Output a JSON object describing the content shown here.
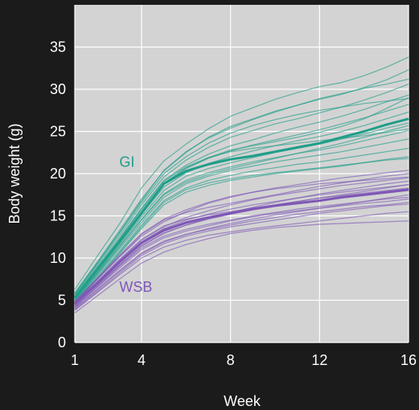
{
  "chart_data": {
    "type": "line",
    "xlabel": "Week",
    "ylabel": "Body weight (g)",
    "xlim": [
      1,
      16
    ],
    "ylim": [
      0,
      40
    ],
    "xticks": [
      1,
      4,
      8,
      12,
      16
    ],
    "yticks": [
      0,
      5,
      10,
      15,
      20,
      25,
      30,
      35
    ],
    "x": [
      1,
      2,
      3,
      4,
      5,
      6,
      7,
      8,
      9,
      10,
      11,
      12,
      13,
      14,
      15,
      16
    ],
    "grid": true,
    "colors": {
      "plot_background": "#d3d3d3",
      "page_background": "#1b1b1b",
      "grid": "#ffffff",
      "GI": "#1f9e89",
      "WSB": "#7e57b6"
    },
    "annotations": [
      {
        "text": "GI",
        "x": 3.0,
        "y": 20.8,
        "color": "#1f9e89"
      },
      {
        "text": "WSB",
        "x": 3.0,
        "y": 6.0,
        "color": "#7e57b6"
      }
    ],
    "series": [
      {
        "name": "GI",
        "role": "mean",
        "values": [
          5.3,
          8.6,
          11.9,
          15.3,
          18.8,
          20.3,
          21.1,
          21.7,
          22.1,
          22.6,
          23.1,
          23.6,
          24.3,
          25.0,
          25.8,
          26.5
        ]
      },
      {
        "name": "WSB",
        "role": "mean",
        "values": [
          4.6,
          7.0,
          9.5,
          11.8,
          13.3,
          14.2,
          14.8,
          15.3,
          15.8,
          16.2,
          16.5,
          16.8,
          17.2,
          17.5,
          17.8,
          18.1
        ]
      },
      {
        "group": "GI",
        "values": [
          6.3,
          10.2,
          14.0,
          18.3,
          21.5,
          23.5,
          25.3,
          26.8,
          27.8,
          28.8,
          29.6,
          30.3,
          30.8,
          31.6,
          32.6,
          33.8
        ]
      },
      {
        "group": "GI",
        "values": [
          5.9,
          9.5,
          13.2,
          17.0,
          20.3,
          22.5,
          24.3,
          25.6,
          26.5,
          27.4,
          28.1,
          28.8,
          29.4,
          30.2,
          31.1,
          32.3
        ]
      },
      {
        "group": "GI",
        "values": [
          5.6,
          9.1,
          12.6,
          16.3,
          19.6,
          21.6,
          23.1,
          24.3,
          25.1,
          25.9,
          26.5,
          27.2,
          27.9,
          28.7,
          29.6,
          30.6
        ]
      },
      {
        "group": "GI",
        "values": [
          5.5,
          8.9,
          12.3,
          15.9,
          19.2,
          21.0,
          22.3,
          23.3,
          24.0,
          24.8,
          25.5,
          26.1,
          26.8,
          27.6,
          28.5,
          29.3
        ]
      },
      {
        "group": "GI",
        "values": [
          5.4,
          8.7,
          12.1,
          15.6,
          18.9,
          20.6,
          21.8,
          22.7,
          23.4,
          24.0,
          24.6,
          25.2,
          25.9,
          26.6,
          27.4,
          28.2
        ]
      },
      {
        "group": "GI",
        "values": [
          5.2,
          8.5,
          11.8,
          15.2,
          18.4,
          20.1,
          21.2,
          22.0,
          22.7,
          23.3,
          23.9,
          24.4,
          25.0,
          25.7,
          26.5,
          27.3
        ]
      },
      {
        "group": "GI",
        "values": [
          5.1,
          8.3,
          11.6,
          14.9,
          18.0,
          19.7,
          20.6,
          21.3,
          21.9,
          22.5,
          23.0,
          23.5,
          24.1,
          24.7,
          25.4,
          26.0
        ]
      },
      {
        "group": "GI",
        "values": [
          5.0,
          8.2,
          11.4,
          14.6,
          17.6,
          19.2,
          20.1,
          20.8,
          21.4,
          21.9,
          22.4,
          22.8,
          23.3,
          23.9,
          24.5,
          25.1
        ]
      },
      {
        "group": "GI",
        "values": [
          4.9,
          8.0,
          11.1,
          14.2,
          17.2,
          18.8,
          19.7,
          20.4,
          20.9,
          21.4,
          21.8,
          22.2,
          22.6,
          23.1,
          23.6,
          24.1
        ]
      },
      {
        "group": "GI",
        "values": [
          4.8,
          7.8,
          10.8,
          13.9,
          16.8,
          18.3,
          19.2,
          19.8,
          20.3,
          20.7,
          21.1,
          21.4,
          21.8,
          22.2,
          22.6,
          23.0
        ]
      },
      {
        "group": "GI",
        "values": [
          4.6,
          7.5,
          10.5,
          13.5,
          16.3,
          17.8,
          18.6,
          19.2,
          19.6,
          20.0,
          20.3,
          20.6,
          20.9,
          21.3,
          21.7,
          22.0
        ]
      },
      {
        "group": "GI",
        "values": [
          5.7,
          9.3,
          12.9,
          16.6,
          20.0,
          22.0,
          23.6,
          24.8,
          25.7,
          26.4,
          27.0,
          27.5,
          27.9,
          28.3,
          28.6,
          28.9
        ]
      },
      {
        "group": "GI",
        "values": [
          5.3,
          8.6,
          11.9,
          15.4,
          18.8,
          20.7,
          21.9,
          22.8,
          23.3,
          23.8,
          24.3,
          24.9,
          25.6,
          26.5,
          27.7,
          29.0
        ]
      },
      {
        "group": "GI",
        "values": [
          5.0,
          8.1,
          11.3,
          14.5,
          17.5,
          19.0,
          19.9,
          20.6,
          21.2,
          21.8,
          22.4,
          23.0,
          23.6,
          24.3,
          25.0,
          25.7
        ]
      },
      {
        "group": "GI",
        "values": [
          5.8,
          9.4,
          13.0,
          16.8,
          20.4,
          22.6,
          24.2,
          25.4,
          26.4,
          27.3,
          28.1,
          28.9,
          29.5,
          30.1,
          30.6,
          31.2
        ]
      },
      {
        "group": "GI",
        "values": [
          4.7,
          7.6,
          10.6,
          13.7,
          16.6,
          18.1,
          18.9,
          19.4,
          19.8,
          20.1,
          20.4,
          20.7,
          21.0,
          21.3,
          21.6,
          21.8
        ]
      },
      {
        "group": "GI",
        "values": [
          5.4,
          8.8,
          12.2,
          15.8,
          19.1,
          20.8,
          21.9,
          22.6,
          23.0,
          23.3,
          23.6,
          23.9,
          24.2,
          24.5,
          24.9,
          25.3
        ]
      },
      {
        "group": "WSB",
        "values": [
          4.7,
          7.4,
          10.1,
          12.6,
          14.3,
          15.5,
          16.5,
          17.2,
          17.8,
          18.3,
          18.7,
          19.1,
          19.5,
          19.8,
          20.1,
          20.4
        ]
      },
      {
        "group": "WSB",
        "values": [
          4.6,
          7.1,
          9.7,
          12.1,
          13.7,
          14.8,
          15.6,
          16.3,
          16.9,
          17.4,
          17.8,
          18.2,
          18.6,
          18.9,
          19.2,
          19.5
        ]
      },
      {
        "group": "WSB",
        "values": [
          4.5,
          6.9,
          9.4,
          11.7,
          13.2,
          14.1,
          14.8,
          15.4,
          15.9,
          16.3,
          16.7,
          17.1,
          17.4,
          17.7,
          18.0,
          18.3
        ]
      },
      {
        "group": "WSB",
        "values": [
          4.3,
          6.6,
          9.0,
          11.2,
          12.6,
          13.4,
          14.0,
          14.5,
          15.0,
          15.4,
          15.8,
          16.1,
          16.4,
          16.7,
          17.0,
          17.2
        ]
      },
      {
        "group": "WSB",
        "values": [
          4.1,
          6.3,
          8.5,
          10.6,
          12.0,
          12.8,
          13.4,
          13.9,
          14.4,
          14.8,
          15.2,
          15.5,
          15.8,
          16.1,
          16.3,
          16.6
        ]
      },
      {
        "group": "WSB",
        "values": [
          3.8,
          5.9,
          8.0,
          10.0,
          11.3,
          12.1,
          12.7,
          13.1,
          13.5,
          13.8,
          14.1,
          14.4,
          14.7,
          15.0,
          15.3,
          15.5
        ]
      },
      {
        "group": "WSB",
        "values": [
          3.5,
          5.5,
          7.5,
          9.4,
          10.7,
          11.6,
          12.3,
          12.9,
          13.3,
          13.6,
          13.8,
          14.0,
          14.1,
          14.2,
          14.3,
          14.4
        ]
      },
      {
        "group": "WSB",
        "values": [
          4.8,
          7.5,
          10.2,
          12.8,
          14.5,
          15.4,
          16.0,
          16.5,
          17.0,
          17.5,
          18.0,
          18.5,
          18.9,
          19.3,
          19.7,
          20.0
        ]
      },
      {
        "group": "WSB",
        "values": [
          4.4,
          6.8,
          9.2,
          11.5,
          13.0,
          13.9,
          14.6,
          15.2,
          15.8,
          16.3,
          16.7,
          17.1,
          17.5,
          17.9,
          18.3,
          18.7
        ]
      },
      {
        "group": "WSB",
        "values": [
          4.2,
          6.5,
          8.8,
          11.0,
          12.4,
          13.2,
          13.8,
          14.4,
          14.9,
          15.3,
          15.6,
          15.9,
          16.2,
          16.5,
          16.7,
          17.0
        ]
      },
      {
        "group": "WSB",
        "values": [
          4.9,
          7.6,
          10.3,
          12.9,
          14.6,
          15.7,
          16.6,
          17.3,
          17.8,
          18.2,
          18.5,
          18.8,
          19.0,
          19.2,
          19.4,
          19.6
        ]
      },
      {
        "group": "WSB",
        "values": [
          4.0,
          6.2,
          8.4,
          10.5,
          11.9,
          12.8,
          13.5,
          14.1,
          14.6,
          15.1,
          15.5,
          15.9,
          16.3,
          16.7,
          17.1,
          17.5
        ]
      },
      {
        "group": "WSB",
        "values": [
          4.5,
          7.0,
          9.5,
          11.9,
          13.5,
          14.5,
          15.2,
          15.8,
          16.3,
          16.7,
          17.1,
          17.5,
          17.8,
          18.1,
          18.4,
          18.7
        ]
      },
      {
        "group": "WSB",
        "values": [
          4.3,
          6.7,
          9.1,
          11.4,
          12.9,
          13.9,
          14.7,
          15.4,
          16.0,
          16.6,
          17.1,
          17.6,
          18.0,
          18.4,
          18.8,
          19.1
        ]
      },
      {
        "group": "WSB",
        "values": [
          3.9,
          6.0,
          8.2,
          10.3,
          11.7,
          12.6,
          13.2,
          13.7,
          14.1,
          14.5,
          14.9,
          15.3,
          15.6,
          15.9,
          16.2,
          16.4
        ]
      },
      {
        "group": "WSB",
        "values": [
          4.6,
          7.2,
          9.8,
          12.2,
          13.8,
          14.6,
          15.1,
          15.5,
          15.9,
          16.2,
          16.5,
          16.8,
          17.1,
          17.4,
          17.7,
          18.0
        ]
      }
    ]
  }
}
